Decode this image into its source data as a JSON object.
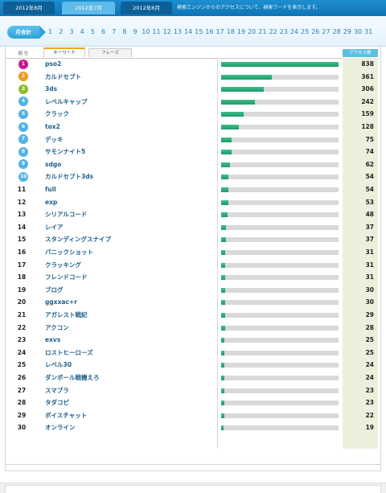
{
  "header": {
    "tabs": [
      {
        "label": "2012年8月"
      },
      {
        "label": "2012年7月"
      },
      {
        "label": "2012年6月"
      }
    ],
    "note": "検索エンジンからのアクセスについて、検索ワードを表示します。"
  },
  "day_strip": {
    "monthly_label": "月合計",
    "days": [
      "1",
      "2",
      "3",
      "4",
      "5",
      "6",
      "7",
      "8",
      "9",
      "10",
      "11",
      "12",
      "13",
      "14",
      "15",
      "16",
      "17",
      "18",
      "19",
      "20",
      "21",
      "22",
      "23",
      "24",
      "25",
      "26",
      "27",
      "28",
      "29",
      "30",
      "31"
    ]
  },
  "table": {
    "rank_header": "順 位",
    "tabs": {
      "keyword": "キーワード",
      "phrase": "フレーズ"
    },
    "access_header": "アクセス数",
    "max_value": 838,
    "medal_colors": {
      "gold": "#c9168c",
      "orange": "#f09a1d",
      "green": "#8cbf2a",
      "blue": "#4fb3e6"
    },
    "rows": [
      {
        "rank": "1",
        "keyword": "pso2",
        "value": 838,
        "medal": "gold"
      },
      {
        "rank": "2",
        "keyword": "カルドセプト",
        "value": 361,
        "medal": "orange"
      },
      {
        "rank": "3",
        "keyword": "3ds",
        "value": 306,
        "medal": "green"
      },
      {
        "rank": "4",
        "keyword": "レベルキャップ",
        "value": 242,
        "medal": "blue"
      },
      {
        "rank": "5",
        "keyword": "クラック",
        "value": 159,
        "medal": "blue"
      },
      {
        "rank": "6",
        "keyword": "tox2",
        "value": 128,
        "medal": "blue"
      },
      {
        "rank": "7",
        "keyword": "デッキ",
        "value": 75,
        "medal": "blue"
      },
      {
        "rank": "8",
        "keyword": "サモンナイト5",
        "value": 74,
        "medal": "blue"
      },
      {
        "rank": "9",
        "keyword": "sdgo",
        "value": 62,
        "medal": "blue"
      },
      {
        "rank": "10",
        "keyword": "カルドセプト3ds",
        "value": 54,
        "medal": "blue"
      },
      {
        "rank": "11",
        "keyword": "full",
        "value": 54,
        "medal": ""
      },
      {
        "rank": "12",
        "keyword": "exp",
        "value": 53,
        "medal": ""
      },
      {
        "rank": "13",
        "keyword": "シリアルコード",
        "value": 48,
        "medal": ""
      },
      {
        "rank": "14",
        "keyword": "レイア",
        "value": 37,
        "medal": ""
      },
      {
        "rank": "15",
        "keyword": "スタンディングスナイプ",
        "value": 37,
        "medal": ""
      },
      {
        "rank": "16",
        "keyword": "パニックショット",
        "value": 31,
        "medal": ""
      },
      {
        "rank": "17",
        "keyword": "クラッキング",
        "value": 31,
        "medal": ""
      },
      {
        "rank": "18",
        "keyword": "フレンドコード",
        "value": 31,
        "medal": ""
      },
      {
        "rank": "19",
        "keyword": "ブログ",
        "value": 30,
        "medal": ""
      },
      {
        "rank": "20",
        "keyword": "ggxxac+r",
        "value": 30,
        "medal": ""
      },
      {
        "rank": "21",
        "keyword": "アガレスト戦記",
        "value": 29,
        "medal": ""
      },
      {
        "rank": "22",
        "keyword": "アクコン",
        "value": 28,
        "medal": ""
      },
      {
        "rank": "23",
        "keyword": "exvs",
        "value": 25,
        "medal": ""
      },
      {
        "rank": "24",
        "keyword": "ロストヒーローズ",
        "value": 25,
        "medal": ""
      },
      {
        "rank": "25",
        "keyword": "レベル30",
        "value": 24,
        "medal": ""
      },
      {
        "rank": "26",
        "keyword": "ダンボール戦機えろ",
        "value": 24,
        "medal": ""
      },
      {
        "rank": "27",
        "keyword": "スマブラ",
        "value": 23,
        "medal": ""
      },
      {
        "rank": "28",
        "keyword": "タダコピ",
        "value": 23,
        "medal": ""
      },
      {
        "rank": "29",
        "keyword": "ボイスチャット",
        "value": 22,
        "medal": ""
      },
      {
        "rank": "30",
        "keyword": "オンライン",
        "value": 19,
        "medal": ""
      }
    ]
  }
}
